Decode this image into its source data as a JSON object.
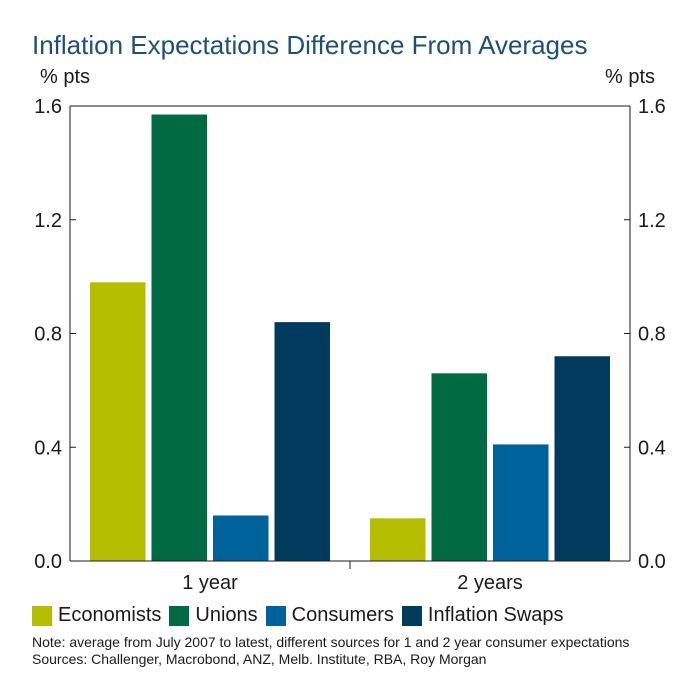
{
  "title": "Inflation Expectations Difference From Averages",
  "unit_left": "% pts",
  "unit_right": "% pts",
  "legend": [
    {
      "label": "Economists",
      "color": "#b5bd00"
    },
    {
      "label": "Unions",
      "color": "#006a44"
    },
    {
      "label": "Consumers",
      "color": "#00629b"
    },
    {
      "label": "Inflation Swaps",
      "color": "#003a5d"
    }
  ],
  "note": "Note: average from July 2007 to latest, different sources for 1 and 2 year consumer expectations",
  "sources": "Sources: Challenger, Macrobond, ANZ, Melb. Institute, RBA, Roy Morgan",
  "chart_data": {
    "type": "bar",
    "title": "Inflation Expectations Difference From Averages",
    "categories": [
      "1 year",
      "2 years"
    ],
    "series": [
      {
        "name": "Economists",
        "color": "#b5bd00",
        "values": [
          0.98,
          0.15
        ]
      },
      {
        "name": "Unions",
        "color": "#006a44",
        "values": [
          1.57,
          0.66
        ]
      },
      {
        "name": "Consumers",
        "color": "#00629b",
        "values": [
          0.16,
          0.41
        ]
      },
      {
        "name": "Inflation Swaps",
        "color": "#003a5d",
        "values": [
          0.84,
          0.72
        ]
      }
    ],
    "ylim": [
      0,
      1.6
    ],
    "yticks": [
      "0.0",
      "0.4",
      "0.8",
      "1.2",
      "1.6"
    ],
    "ytick_values": [
      0,
      0.4,
      0.8,
      1.2,
      1.6
    ],
    "ylabel": "% pts",
    "y2label": "% pts",
    "legend_position": "bottom"
  }
}
